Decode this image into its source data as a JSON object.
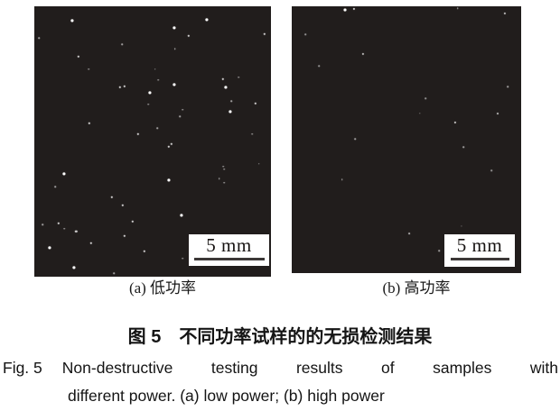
{
  "figure": {
    "caption_zh": "图 5　不同功率试样的的无损检测结果",
    "fig_label_en": "Fig. 5",
    "caption_en_line1": "Non-destructive testing results of samples with",
    "caption_en_line2": "different power. (a) low power; (b) high power"
  },
  "panels": [
    {
      "id": "a",
      "label": "(a) 低功率",
      "scale_bar": "5 mm",
      "dots": [
        [
          16.0,
          5.3,
          3.2,
          1
        ],
        [
          1.9,
          11.7,
          1.6,
          0.55
        ],
        [
          37.0,
          14.0,
          1.6,
          0.55
        ],
        [
          18.7,
          18.7,
          2.4,
          0.8
        ],
        [
          22.9,
          23.3,
          1.6,
          0.55
        ],
        [
          36.3,
          30.0,
          2.4,
          0.8
        ],
        [
          38.2,
          29.7,
          2.4,
          0.8
        ],
        [
          48.9,
          32.0,
          3.2,
          1
        ],
        [
          48.1,
          36.3,
          1.6,
          0.55
        ],
        [
          23.3,
          43.3,
          2.4,
          0.8
        ],
        [
          43.9,
          47.3,
          2.4,
          0.8
        ],
        [
          72.9,
          5.0,
          3.2,
          1
        ],
        [
          59.2,
          8.0,
          3.2,
          1
        ],
        [
          65.3,
          11.0,
          2.4,
          0.8
        ],
        [
          97.3,
          10.3,
          2.4,
          0.8
        ],
        [
          59.5,
          15.7,
          1.6,
          0.55
        ],
        [
          51.1,
          23.3,
          1.6,
          0.55
        ],
        [
          52.3,
          27.3,
          1.6,
          0.55
        ],
        [
          59.2,
          29.0,
          3.2,
          1
        ],
        [
          79.8,
          27.0,
          2.4,
          0.8
        ],
        [
          80.9,
          30.0,
          3.2,
          1
        ],
        [
          86.3,
          26.3,
          1.6,
          0.55
        ],
        [
          83.2,
          35.0,
          1.6,
          0.55
        ],
        [
          93.5,
          36.0,
          2.4,
          0.8
        ],
        [
          62.6,
          38.3,
          1.6,
          0.55
        ],
        [
          61.5,
          40.7,
          1.6,
          0.55
        ],
        [
          82.8,
          39.0,
          3.2,
          1
        ],
        [
          92.0,
          47.3,
          1.6,
          0.55
        ],
        [
          51.9,
          45.0,
          1.6,
          0.55
        ],
        [
          58.0,
          51.0,
          2.4,
          0.8
        ],
        [
          79.8,
          59.3,
          1.6,
          0.55
        ],
        [
          95.0,
          58.3,
          1.6,
          0.55
        ],
        [
          78.2,
          63.7,
          1.6,
          0.55
        ],
        [
          80.2,
          60.3,
          1.6,
          0.55
        ],
        [
          8.8,
          66.7,
          1.6,
          0.55
        ],
        [
          12.6,
          62.0,
          3.2,
          1
        ],
        [
          32.8,
          70.7,
          2.4,
          0.8
        ],
        [
          37.4,
          73.7,
          2.4,
          0.8
        ],
        [
          3.4,
          80.7,
          1.6,
          0.55
        ],
        [
          10.3,
          80.3,
          2.4,
          0.8
        ],
        [
          12.6,
          82.3,
          1.6,
          0.55
        ],
        [
          17.6,
          83.3,
          2.4,
          0.8
        ],
        [
          41.6,
          79.7,
          2.4,
          0.8
        ],
        [
          38.2,
          85.0,
          2.4,
          0.8
        ],
        [
          24.0,
          87.7,
          2.4,
          0.8
        ],
        [
          6.5,
          89.3,
          3.2,
          1
        ],
        [
          46.6,
          90.7,
          2.4,
          0.8
        ],
        [
          16.8,
          96.7,
          3.2,
          1
        ],
        [
          33.6,
          98.7,
          1.6,
          0.55
        ],
        [
          56.9,
          52.0,
          2.4,
          0.8
        ],
        [
          56.9,
          64.3,
          3.2,
          1
        ],
        [
          80.2,
          65.3,
          1.6,
          0.55
        ],
        [
          62.2,
          77.3,
          3.2,
          1
        ],
        [
          62.6,
          93.3,
          1.6,
          0.55
        ]
      ]
    },
    {
      "id": "b",
      "label": "(b) 高功率",
      "scale_bar": "5 mm",
      "dots": [
        [
          23.2,
          1.4,
          3.0,
          1
        ],
        [
          27.2,
          1.0,
          2.2,
          0.8
        ],
        [
          5.9,
          10.5,
          1.6,
          0.5
        ],
        [
          31.1,
          17.9,
          2.2,
          0.7
        ],
        [
          11.8,
          22.3,
          1.6,
          0.5
        ],
        [
          27.6,
          49.7,
          1.6,
          0.55
        ],
        [
          72.4,
          0.7,
          1.6,
          0.55
        ],
        [
          92.9,
          2.7,
          2.2,
          0.7
        ],
        [
          94.1,
          30.1,
          1.6,
          0.55
        ],
        [
          58.3,
          34.5,
          1.6,
          0.5
        ],
        [
          55.9,
          40.2,
          1.4,
          0.45
        ],
        [
          89.8,
          40.2,
          2.0,
          0.65
        ],
        [
          71.3,
          43.6,
          2.2,
          0.75
        ],
        [
          22.0,
          64.9,
          1.6,
          0.5
        ],
        [
          51.2,
          85.1,
          1.8,
          0.6
        ],
        [
          74.8,
          52.7,
          1.6,
          0.55
        ],
        [
          87.0,
          61.5,
          1.6,
          0.5
        ],
        [
          74.0,
          82.4,
          1.2,
          0.4
        ],
        [
          64.2,
          91.6,
          1.6,
          0.55
        ]
      ]
    }
  ],
  "colors": {
    "panel_bg": "#211d1c",
    "dot": "#ffffff",
    "scale_box_bg": "#ffffff",
    "scale_line": "#3c3837",
    "text": "#1a1a1a"
  }
}
